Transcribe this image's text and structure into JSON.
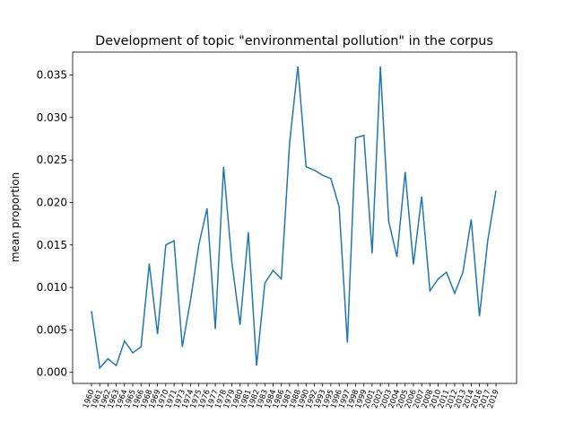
{
  "chart_data": {
    "type": "line",
    "title": "Development of topic \"environmental pollution\" in the corpus",
    "y_label": "mean proportion",
    "categories": [
      "1960",
      "1961",
      "1962",
      "1963",
      "1964",
      "1965",
      "1966",
      "1968",
      "1969",
      "1970",
      "1971",
      "1973",
      "1974",
      "1975",
      "1976",
      "1977",
      "1978",
      "1979",
      "1980",
      "1981",
      "1982",
      "1983",
      "1984",
      "1986",
      "1987",
      "1988",
      "1990",
      "1992",
      "1993",
      "1995",
      "1996",
      "1997",
      "1998",
      "1999",
      "2001",
      "2002",
      "2003",
      "2004",
      "2005",
      "2006",
      "2007",
      "2008",
      "2010",
      "2011",
      "2012",
      "2013",
      "2014",
      "2016",
      "2017",
      "2019"
    ],
    "series": [
      {
        "name": "mean proportion",
        "color": "#1f77b4",
        "values": [
          0.0072,
          0.0005,
          0.0016,
          0.0008,
          0.0037,
          0.0023,
          0.003,
          0.0128,
          0.0045,
          0.015,
          0.0155,
          0.003,
          0.0085,
          0.015,
          0.0193,
          0.0051,
          0.0242,
          0.013,
          0.0056,
          0.0165,
          0.0008,
          0.0105,
          0.012,
          0.011,
          0.027,
          0.036,
          0.0242,
          0.0238,
          0.0232,
          0.0228,
          0.0195,
          0.0035,
          0.0276,
          0.0279,
          0.014,
          0.036,
          0.0178,
          0.0136,
          0.0236,
          0.0127,
          0.0207,
          0.0096,
          0.011,
          0.0118,
          0.0093,
          0.0118,
          0.018,
          0.0066,
          0.0155,
          0.0214
        ]
      }
    ],
    "ylim": [
      -0.0013,
      0.0377
    ],
    "yticks": [
      {
        "value": 0,
        "label": "0.000"
      },
      {
        "value": 0.005,
        "label": "0.005"
      },
      {
        "value": 0.01,
        "label": "0.010"
      },
      {
        "value": 0.015,
        "label": "0.015"
      },
      {
        "value": 0.02,
        "label": "0.020"
      },
      {
        "value": 0.025,
        "label": "0.025"
      },
      {
        "value": 0.03,
        "label": "0.030"
      },
      {
        "value": 0.035,
        "label": "0.035"
      }
    ]
  }
}
